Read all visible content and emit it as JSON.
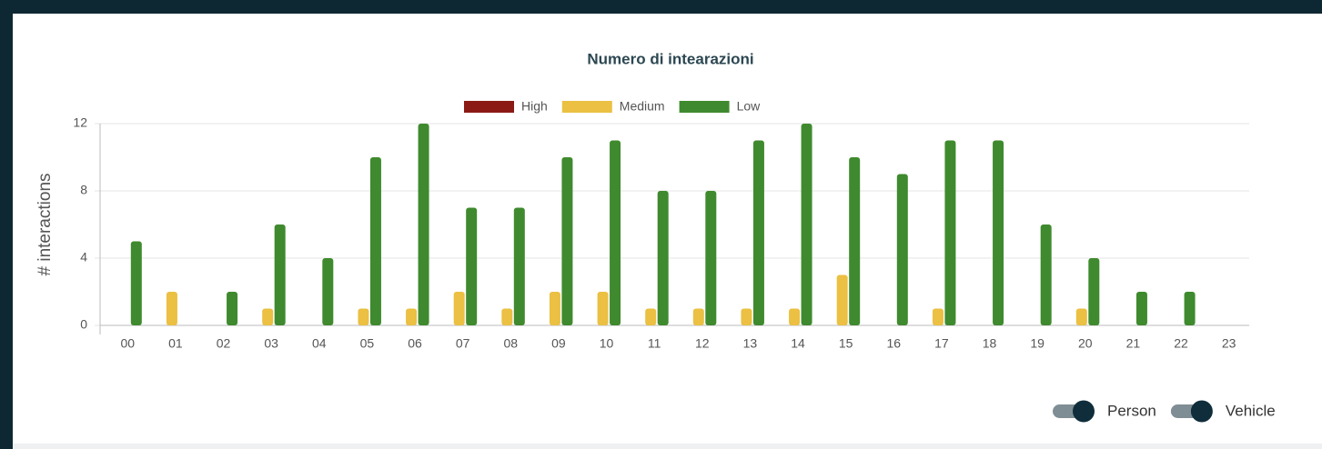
{
  "chart_data": {
    "type": "bar",
    "title": "Numero di intearazioni",
    "y_label": "# interactions",
    "categories": [
      "00",
      "01",
      "02",
      "03",
      "04",
      "05",
      "06",
      "07",
      "08",
      "09",
      "10",
      "11",
      "12",
      "13",
      "14",
      "15",
      "16",
      "17",
      "18",
      "19",
      "20",
      "21",
      "22",
      "23"
    ],
    "series": [
      {
        "name": "High",
        "color": "#8b1a14",
        "values": [
          0,
          0,
          0,
          0,
          0,
          0,
          0,
          0,
          0,
          0,
          0,
          0,
          0,
          0,
          0,
          0,
          0,
          0,
          0,
          0,
          0,
          0,
          0,
          0
        ]
      },
      {
        "name": "Medium",
        "color": "#ebc043",
        "values": [
          0,
          2,
          0,
          1,
          0,
          1,
          1,
          2,
          1,
          2,
          2,
          1,
          1,
          1,
          1,
          3,
          0,
          1,
          0,
          0,
          1,
          0,
          0,
          0
        ]
      },
      {
        "name": "Low",
        "color": "#3f8a2e",
        "values": [
          5,
          0,
          2,
          6,
          4,
          10,
          12,
          7,
          7,
          10,
          11,
          8,
          8,
          11,
          12,
          10,
          9,
          11,
          11,
          6,
          4,
          2,
          2,
          0
        ]
      }
    ],
    "ylim": [
      0,
      12
    ],
    "yticks": [
      0,
      4,
      8,
      12
    ],
    "grid": true
  },
  "toggles": [
    {
      "label": "Person"
    },
    {
      "label": "Vehicle"
    }
  ]
}
